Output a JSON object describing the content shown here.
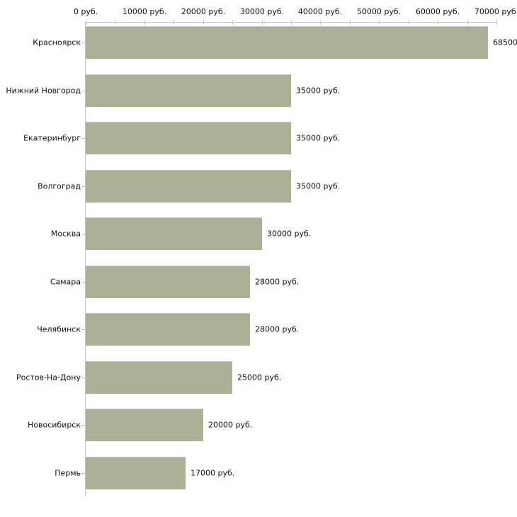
{
  "chart_data": {
    "type": "bar",
    "orientation": "horizontal",
    "title": "",
    "xlabel": "",
    "ylabel": "",
    "categories": [
      "Красноярск",
      "Нижний Новгород",
      "Екатеринбург",
      "Волгоград",
      "Москва",
      "Самара",
      "Челябинск",
      "Ростов-На-Дону",
      "Новосибирск",
      "Пермь"
    ],
    "values": [
      68500,
      35000,
      35000,
      35000,
      30000,
      28000,
      28000,
      25000,
      20000,
      17000
    ],
    "bar_labels": [
      "68500",
      "35000 руб.",
      "35000 руб.",
      "35000 руб.",
      "30000 руб.",
      "28000 руб.",
      "28000 руб.",
      "25000 руб.",
      "20000 руб.",
      "17000 руб."
    ],
    "x_axis": {
      "position": "top",
      "min": 0,
      "max": 70000,
      "tick_values": [
        0,
        10000,
        20000,
        30000,
        40000,
        50000,
        60000,
        70000
      ],
      "tick_labels": [
        "0 руб.",
        "10000 руб.",
        "20000 руб.",
        "30000 руб.",
        "40000 руб.",
        "50000 руб.",
        "60000 руб.",
        "70000 руб."
      ],
      "minor_tick_values": [
        5000,
        15000,
        25000,
        35000,
        45000,
        55000,
        65000
      ]
    },
    "grid": false,
    "legend": false,
    "colors": {
      "background": "#ffffff",
      "bar_fill": "#abb096",
      "axis_line": "#c6c6c6",
      "value_tick": "#cbcc9b",
      "category_tick": "#d2b7aa",
      "text": "#111111"
    }
  }
}
